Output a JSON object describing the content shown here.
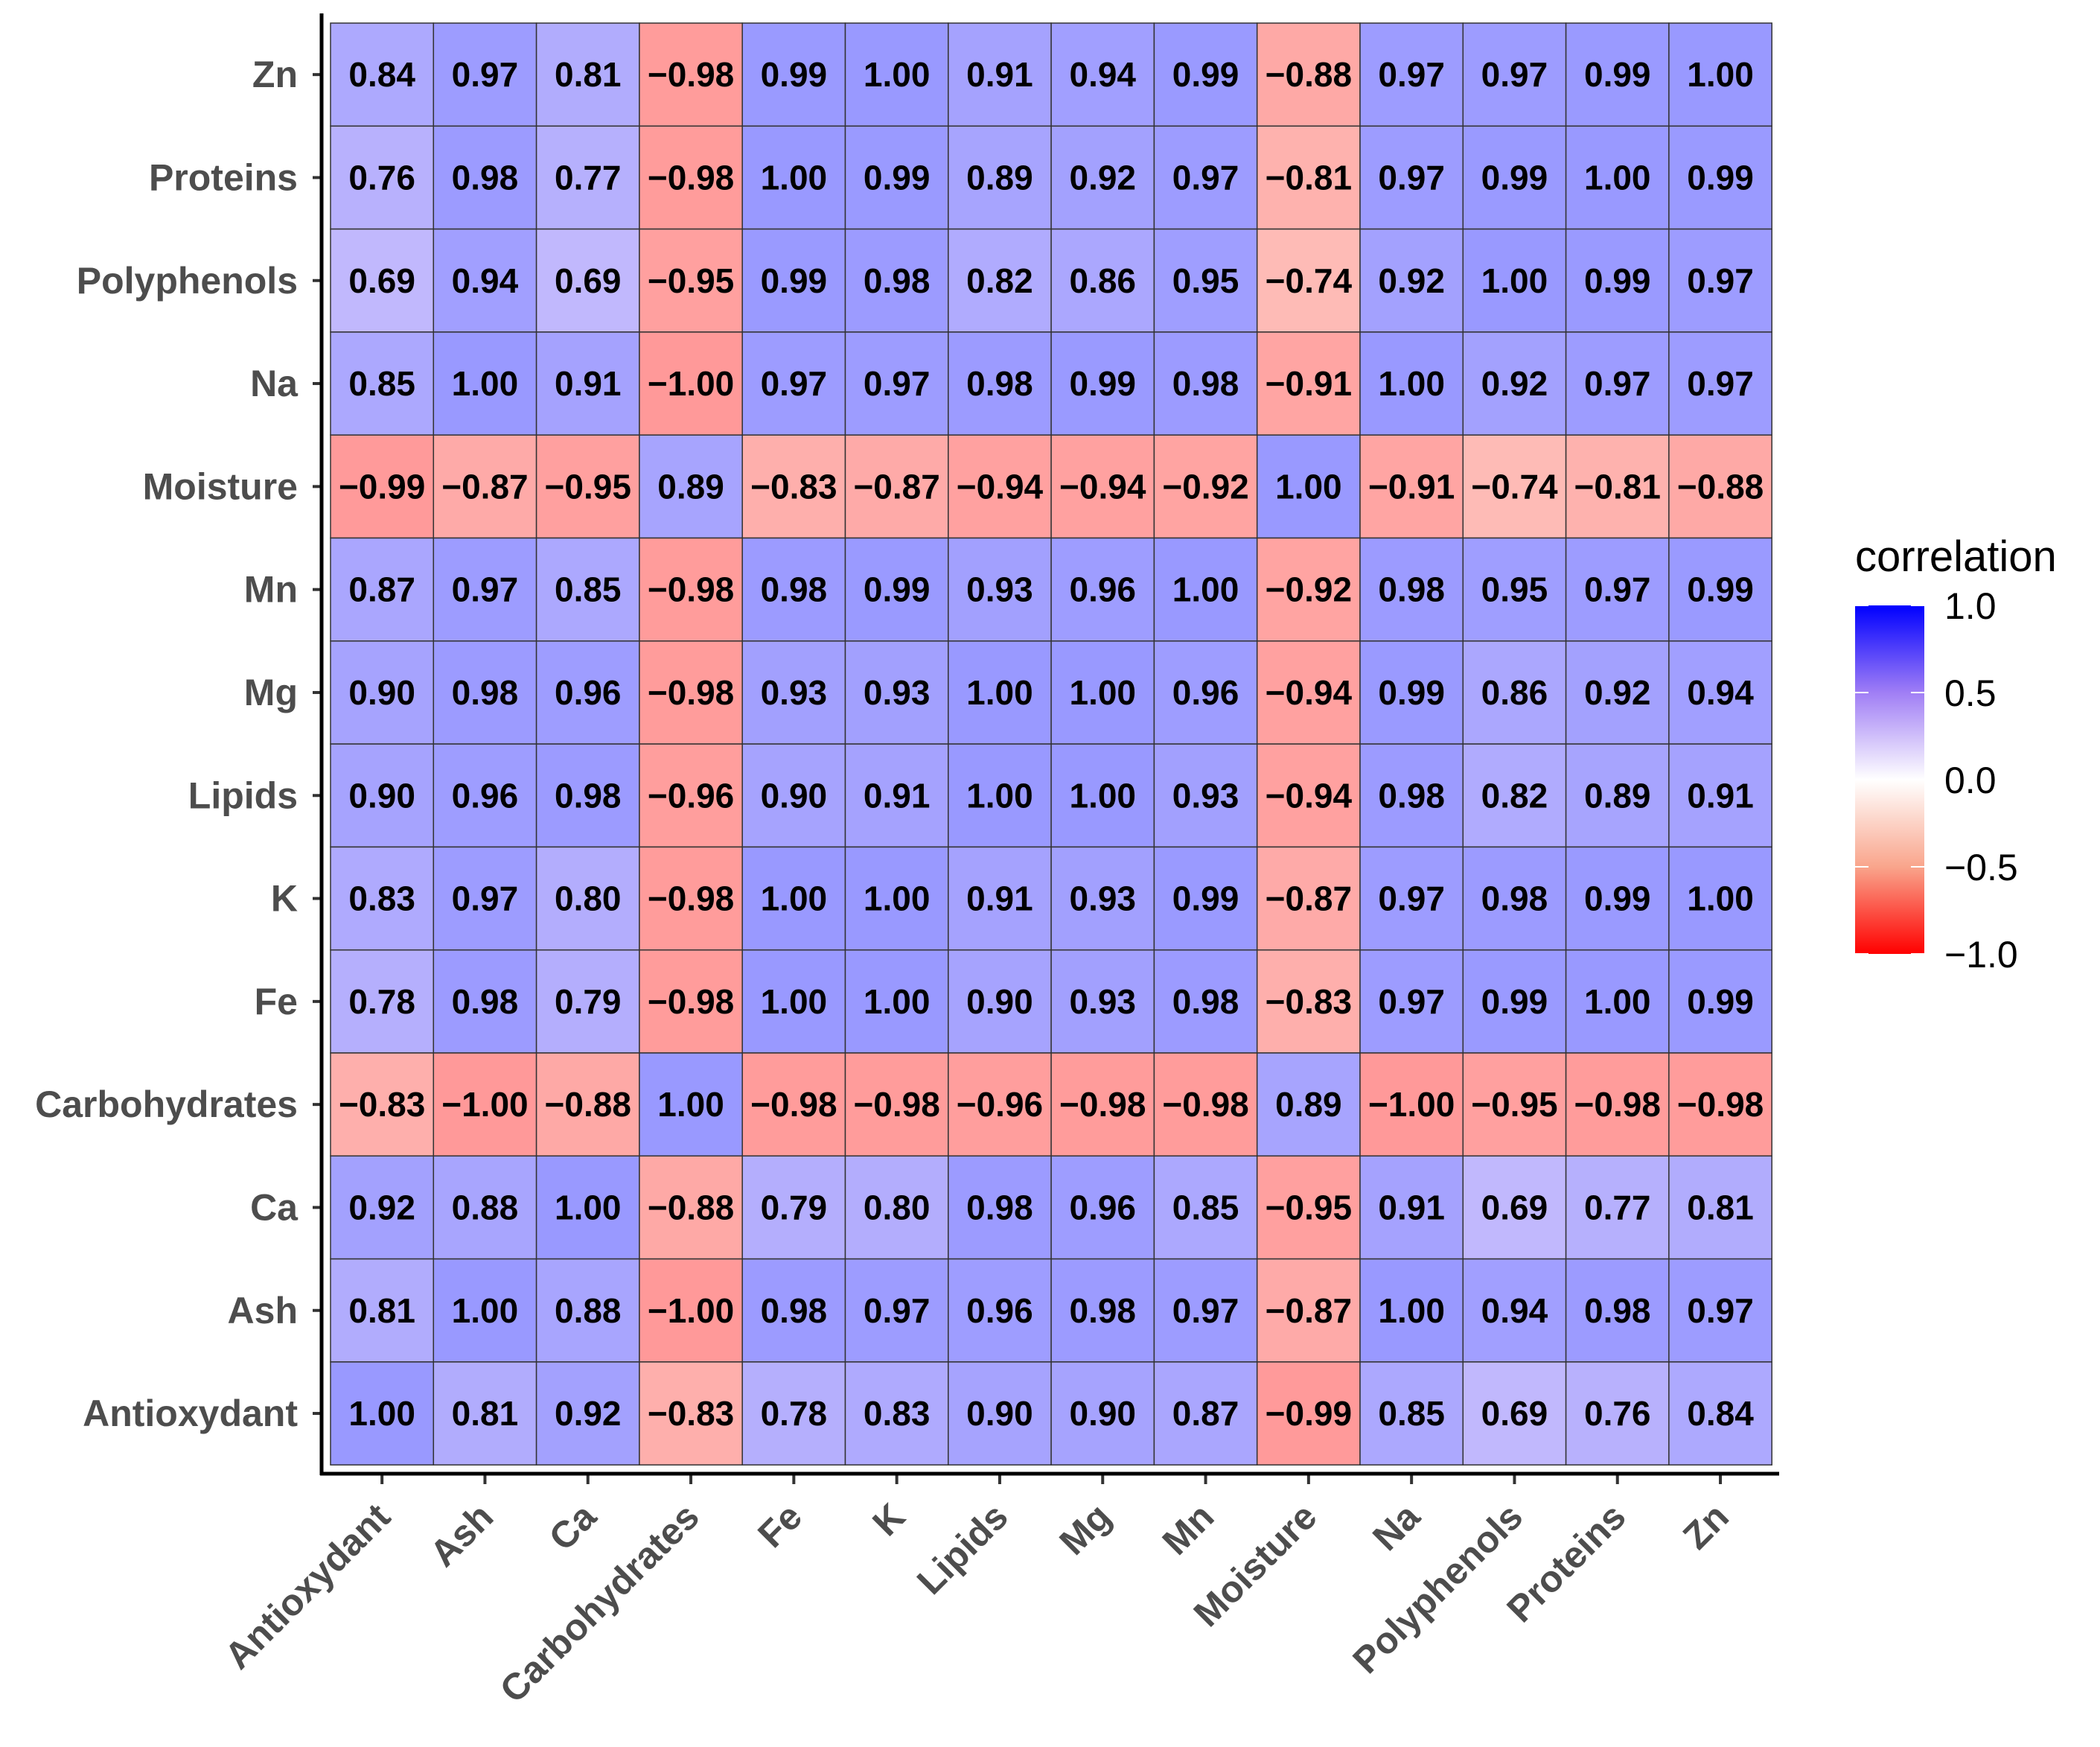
{
  "chart_data": {
    "type": "heatmap",
    "title": "",
    "xlabel": "",
    "ylabel": "",
    "x_categories": [
      "Antioxydant",
      "Ash",
      "Ca",
      "Carbohydrates",
      "Fe",
      "K",
      "Lipids",
      "Mg",
      "Mn",
      "Moisture",
      "Na",
      "Polyphenols",
      "Proteins",
      "Zn"
    ],
    "y_categories_top_to_bottom": [
      "Zn",
      "Proteins",
      "Polyphenols",
      "Na",
      "Moisture",
      "Mn",
      "Mg",
      "Lipids",
      "K",
      "Fe",
      "Carbohydrates",
      "Ca",
      "Ash",
      "Antioxydant"
    ],
    "values": [
      [
        "0.84",
        "0.97",
        "0.81",
        "−0.98",
        "0.99",
        "1.00",
        "0.91",
        "0.94",
        "0.99",
        "−0.88",
        "0.97",
        "0.97",
        "0.99",
        "1.00"
      ],
      [
        "0.76",
        "0.98",
        "0.77",
        "−0.98",
        "1.00",
        "0.99",
        "0.89",
        "0.92",
        "0.97",
        "−0.81",
        "0.97",
        "0.99",
        "1.00",
        "0.99"
      ],
      [
        "0.69",
        "0.94",
        "0.69",
        "−0.95",
        "0.99",
        "0.98",
        "0.82",
        "0.86",
        "0.95",
        "−0.74",
        "0.92",
        "1.00",
        "0.99",
        "0.97"
      ],
      [
        "0.85",
        "1.00",
        "0.91",
        "−1.00",
        "0.97",
        "0.97",
        "0.98",
        "0.99",
        "0.98",
        "−0.91",
        "1.00",
        "0.92",
        "0.97",
        "0.97"
      ],
      [
        "−0.99",
        "−0.87",
        "−0.95",
        "0.89",
        "−0.83",
        "−0.87",
        "−0.94",
        "−0.94",
        "−0.92",
        "1.00",
        "−0.91",
        "−0.74",
        "−0.81",
        "−0.88"
      ],
      [
        "0.87",
        "0.97",
        "0.85",
        "−0.98",
        "0.98",
        "0.99",
        "0.93",
        "0.96",
        "1.00",
        "−0.92",
        "0.98",
        "0.95",
        "0.97",
        "0.99"
      ],
      [
        "0.90",
        "0.98",
        "0.96",
        "−0.98",
        "0.93",
        "0.93",
        "1.00",
        "1.00",
        "0.96",
        "−0.94",
        "0.99",
        "0.86",
        "0.92",
        "0.94"
      ],
      [
        "0.90",
        "0.96",
        "0.98",
        "−0.96",
        "0.90",
        "0.91",
        "1.00",
        "1.00",
        "0.93",
        "−0.94",
        "0.98",
        "0.82",
        "0.89",
        "0.91"
      ],
      [
        "0.83",
        "0.97",
        "0.80",
        "−0.98",
        "1.00",
        "1.00",
        "0.91",
        "0.93",
        "0.99",
        "−0.87",
        "0.97",
        "0.98",
        "0.99",
        "1.00"
      ],
      [
        "0.78",
        "0.98",
        "0.79",
        "−0.98",
        "1.00",
        "1.00",
        "0.90",
        "0.93",
        "0.98",
        "−0.83",
        "0.97",
        "0.99",
        "1.00",
        "0.99"
      ],
      [
        "−0.83",
        "−1.00",
        "−0.88",
        "1.00",
        "−0.98",
        "−0.98",
        "−0.96",
        "−0.98",
        "−0.98",
        "0.89",
        "−1.00",
        "−0.95",
        "−0.98",
        "−0.98"
      ],
      [
        "0.92",
        "0.88",
        "1.00",
        "−0.88",
        "0.79",
        "0.80",
        "0.98",
        "0.96",
        "0.85",
        "−0.95",
        "0.91",
        "0.69",
        "0.77",
        "0.81"
      ],
      [
        "0.81",
        "1.00",
        "0.88",
        "−1.00",
        "0.98",
        "0.97",
        "0.96",
        "0.98",
        "0.97",
        "−0.87",
        "1.00",
        "0.94",
        "0.98",
        "0.97"
      ],
      [
        "1.00",
        "0.81",
        "0.92",
        "−0.83",
        "0.78",
        "0.83",
        "0.90",
        "0.90",
        "0.87",
        "−0.99",
        "0.85",
        "0.69",
        "0.76",
        "0.84"
      ]
    ],
    "color_scale": {
      "min": -1.0,
      "max": 1.0,
      "low": "#FF0000",
      "mid": "#FFFFFF",
      "high": "#0000FF"
    },
    "legend": {
      "title": "correlation",
      "placement": "right",
      "ticks": [
        "1.0",
        "0.5",
        "0.0",
        "−0.5",
        "−1.0"
      ],
      "tick_values": [
        1.0,
        0.5,
        0.0,
        -0.5,
        -1.0
      ]
    },
    "grid": false
  }
}
